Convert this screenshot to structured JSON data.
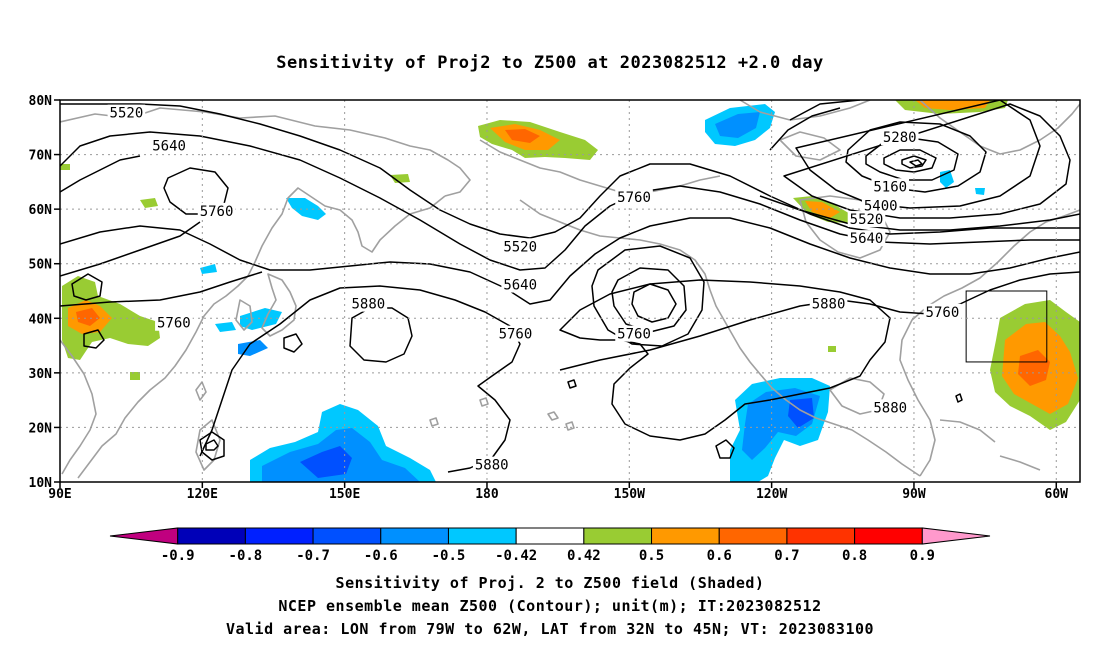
{
  "title": "Sensitivity of Proj2 to Z500 at 2023082512 +2.0 day",
  "map": {
    "lon_range": [
      90,
      305
    ],
    "lat_range": [
      10,
      80
    ],
    "lat_ticks": [
      "80N",
      "70N",
      "60N",
      "50N",
      "40N",
      "30N",
      "20N",
      "10N"
    ],
    "lon_ticks": [
      "90E",
      "120E",
      "150E",
      "180",
      "150W",
      "120W",
      "90W",
      "60W"
    ],
    "grid": "dotted",
    "land_outline_color": "#a0a0a0",
    "contour_color": "#000000",
    "contour_labels": [
      {
        "text": "5520",
        "lon": 104,
        "lat": 77.5
      },
      {
        "text": "5640",
        "lon": 113,
        "lat": 71.5
      },
      {
        "text": "5760",
        "lon": 123,
        "lat": 59.5
      },
      {
        "text": "5760",
        "lon": 114,
        "lat": 39.0
      },
      {
        "text": "5880",
        "lon": 155,
        "lat": 42.5
      },
      {
        "text": "5880",
        "lon": 181,
        "lat": 13.0
      },
      {
        "text": "5520",
        "lon": 187,
        "lat": 53.0
      },
      {
        "text": "5640",
        "lon": 187,
        "lat": 46.0
      },
      {
        "text": "5760",
        "lon": 186,
        "lat": 37.0
      },
      {
        "text": "5760",
        "lon": 211,
        "lat": 62.0
      },
      {
        "text": "5760",
        "lon": 211,
        "lat": 37.0
      },
      {
        "text": "5880",
        "lon": 252,
        "lat": 42.5
      },
      {
        "text": "5880",
        "lon": 265,
        "lat": 23.5
      },
      {
        "text": "5760",
        "lon": 276,
        "lat": 41.0
      },
      {
        "text": "5280",
        "lon": 267,
        "lat": 73.0
      },
      {
        "text": "5160",
        "lon": 265,
        "lat": 64.0
      },
      {
        "text": "5400",
        "lon": 263,
        "lat": 60.5
      },
      {
        "text": "5520",
        "lon": 260,
        "lat": 58.0
      },
      {
        "text": "5640",
        "lon": 260,
        "lat": 54.5
      }
    ],
    "valid_area_box": {
      "lon": [
        281,
        298
      ],
      "lat": [
        32,
        45
      ]
    }
  },
  "colorbar": {
    "levels": [
      "-0.9",
      "-0.8",
      "-0.7",
      "-0.6",
      "-0.5",
      "-0.42",
      "0.42",
      "0.5",
      "0.6",
      "0.7",
      "0.8",
      "0.9"
    ],
    "colors": [
      "#c0007f",
      "#0000b8",
      "#0020ff",
      "#0050ff",
      "#0090ff",
      "#00c8ff",
      "#ffffff",
      "#99cc33",
      "#ff9900",
      "#ff6600",
      "#ff3300",
      "#ff0000",
      "#ff99cc"
    ]
  },
  "captions": [
    "Sensitivity of Proj. 2 to Z500 field (Shaded)",
    "NCEP ensemble mean Z500 (Contour); unit(m); IT:2023082512",
    "Valid area: LON from 79W to 62W, LAT from 32N to 45N; VT: 2023083100"
  ]
}
